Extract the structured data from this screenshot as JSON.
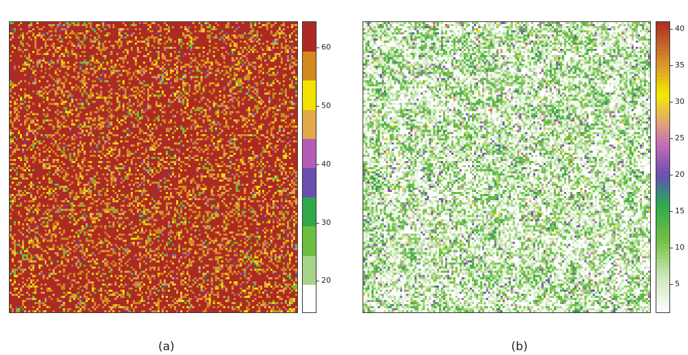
{
  "chart_data": [
    {
      "type": "heatmap",
      "title": "",
      "caption": "(a)",
      "colorbar": {
        "ticks": [
          20,
          30,
          40,
          50,
          60
        ],
        "tick_labels": [
          "20",
          "30",
          "40",
          "50",
          "60"
        ],
        "range": [
          14.5,
          64.5
        ],
        "bins": [
          {
            "from": 14.5,
            "to": 19.5,
            "color": "#ffffff"
          },
          {
            "from": 19.5,
            "to": 24.5,
            "color": "#a6d486"
          },
          {
            "from": 24.5,
            "to": 29.5,
            "color": "#6bbf3f"
          },
          {
            "from": 29.5,
            "to": 34.5,
            "color": "#2ea84a"
          },
          {
            "from": 34.5,
            "to": 39.5,
            "color": "#6a4fb0"
          },
          {
            "from": 39.5,
            "to": 44.5,
            "color": "#b35eb4"
          },
          {
            "from": 44.5,
            "to": 49.5,
            "color": "#e2a84a"
          },
          {
            "from": 49.5,
            "to": 54.5,
            "color": "#f2e200"
          },
          {
            "from": 54.5,
            "to": 59.5,
            "color": "#d4891e"
          },
          {
            "from": 59.5,
            "to": 64.5,
            "color": "#ad2a24"
          }
        ]
      },
      "dominant_value_range": [
        59.5,
        64.5
      ]
    },
    {
      "type": "heatmap",
      "title": "",
      "caption": "(b)",
      "colorbar": {
        "ticks": [
          5,
          10,
          15,
          20,
          25,
          30,
          35,
          40
        ],
        "tick_labels": [
          "5",
          "10",
          "15",
          "20",
          "25",
          "30",
          "35",
          "40"
        ],
        "range": [
          1,
          41
        ],
        "gradient_stops": [
          {
            "value": 1,
            "color": "#ffffff"
          },
          {
            "value": 6,
            "color": "#cfe8bd"
          },
          {
            "value": 11,
            "color": "#74c043"
          },
          {
            "value": 16,
            "color": "#2fa84f"
          },
          {
            "value": 18,
            "color": "#3f7f8f"
          },
          {
            "value": 20,
            "color": "#6a4fb0"
          },
          {
            "value": 24,
            "color": "#c06ab8"
          },
          {
            "value": 27,
            "color": "#e2a07a"
          },
          {
            "value": 31,
            "color": "#f5ea00"
          },
          {
            "value": 35,
            "color": "#d99a2a"
          },
          {
            "value": 41,
            "color": "#ad2a24"
          }
        ]
      },
      "dominant_value_range": [
        1,
        12
      ]
    }
  ]
}
